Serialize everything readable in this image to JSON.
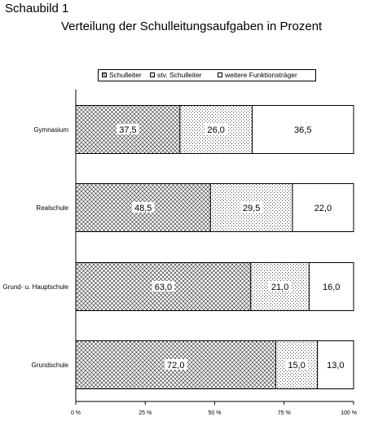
{
  "header": {
    "figure_label": "Schaubild 1",
    "title": "Verteilung der Schulleitungsaufgaben in Prozent"
  },
  "chart_data": {
    "type": "bar",
    "orientation": "horizontal",
    "stacked": true,
    "title": "Verteilung der Schulleitungsaufgaben in Prozent",
    "categories": [
      "Gymnasium",
      "Realschule",
      "Grund- u. Hauptschule",
      "Grundschule"
    ],
    "series": [
      {
        "name": "Schulleiter",
        "pattern": "diagonal-hatch",
        "values": [
          37.5,
          48.5,
          63.0,
          72.0
        ],
        "labels": [
          "37,5",
          "48,5",
          "63,0",
          "72,0"
        ]
      },
      {
        "name": "stv. Schulleiter",
        "pattern": "dots",
        "values": [
          26.0,
          29.5,
          21.0,
          15.0
        ],
        "labels": [
          "26,0",
          "29,5",
          "21,0",
          "15,0"
        ]
      },
      {
        "name": "weitere Funktionsträger",
        "pattern": "solid-white",
        "values": [
          36.5,
          22.0,
          16.0,
          13.0
        ],
        "labels": [
          "36,5",
          "22,0",
          "16,0",
          "13,0"
        ]
      }
    ],
    "xlim": [
      0,
      100
    ],
    "x_ticks": [
      0,
      25,
      50,
      75,
      100
    ],
    "x_tick_labels": [
      "0 %",
      "25 %",
      "50 %",
      "75 %",
      "100 %"
    ],
    "legend_position": "top-center",
    "grid": false
  }
}
